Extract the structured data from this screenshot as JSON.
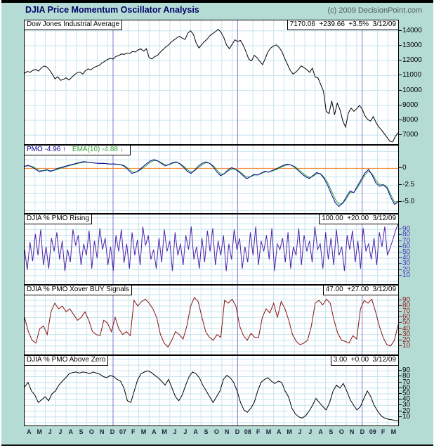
{
  "header": {
    "title": "DJIA Price Momentum Oscillator Analysis",
    "copyright": "(c) 2009 DecisionPoint.com"
  },
  "colors": {
    "background": "#b5dcd4",
    "panel_bg": "#ffffff",
    "grid": "#c6e4ef",
    "year_grid": "#7f76c8",
    "zero_line": "#ef8222",
    "title": "#000066",
    "copyright": "#50585c",
    "month_label": "#222244",
    "pmo_line": "#000099",
    "ema_line": "#2f9e35",
    "rising_line": "#4b22aa",
    "xover_line": "#8b1111",
    "above_line": "#000000",
    "price_line": "#000000"
  },
  "x_axis": {
    "labels": [
      "A",
      "M",
      "J",
      "J",
      "A",
      "S",
      "O",
      "N",
      "D",
      "07",
      "F",
      "M",
      "A",
      "M",
      "J",
      "J",
      "A",
      "S",
      "O",
      "N",
      "D",
      "08",
      "F",
      "M",
      "A",
      "M",
      "J",
      "J",
      "A",
      "S",
      "O",
      "N",
      "D",
      "09",
      "F",
      "M"
    ],
    "year_indices": [
      9,
      21,
      33
    ]
  },
  "chart_data": [
    {
      "type": "line",
      "title": "Dow Jones Industrial Average",
      "info": "7170.06  +239.66  +3.5%  3/12/09",
      "y_range": [
        6400,
        14700
      ],
      "grid_step": 1000,
      "zero_line": false,
      "tick_color": "#000000",
      "y_ticks": [
        {
          "v": 14000,
          "t": "14000"
        },
        {
          "v": 13000,
          "t": "13000"
        },
        {
          "v": 12000,
          "t": "12000"
        },
        {
          "v": 11000,
          "t": "11000"
        },
        {
          "v": 10000,
          "t": "10000"
        },
        {
          "v": 9000,
          "t": "9000"
        },
        {
          "v": 8000,
          "t": "8000"
        },
        {
          "v": 7000,
          "t": "7000"
        }
      ],
      "series": [
        {
          "name": "DJIA",
          "color": "#000000",
          "values": [
            11150,
            11280,
            11220,
            11350,
            11420,
            11300,
            11500,
            11640,
            11580,
            11380,
            11100,
            10780,
            10920,
            10680,
            10740,
            10850,
            10700,
            10880,
            11050,
            11190,
            11240,
            11100,
            11330,
            11450,
            11390,
            11540,
            11620,
            11680,
            11850,
            11960,
            12080,
            12160,
            12100,
            12280,
            12340,
            12450,
            12420,
            12510,
            12480,
            12620,
            12580,
            12720,
            12790,
            12640,
            12800,
            12210,
            12110,
            12270,
            12350,
            12560,
            12740,
            12920,
            13050,
            13250,
            13390,
            13520,
            13640,
            13500,
            13420,
            13850,
            14000,
            13760,
            13200,
            12850,
            13080,
            13280,
            13450,
            13680,
            13820,
            13950,
            14100,
            13900,
            13550,
            13050,
            12800,
            13100,
            13400,
            13280,
            13360,
            13040,
            12600,
            12100,
            11980,
            12350,
            12200,
            11950,
            11740,
            12150,
            12620,
            12850,
            12990,
            13060,
            12880,
            12600,
            12150,
            11750,
            11350,
            11100,
            11230,
            11420,
            11650,
            11530,
            11390,
            11220,
            11500,
            10900,
            10850,
            10400,
            9950,
            8600,
            8450,
            9300,
            8380,
            9150,
            8700,
            7950,
            7550,
            8500,
            8820,
            8600,
            8770,
            9000,
            8750,
            8300,
            8050,
            7950,
            8250,
            7850,
            7550,
            7350,
            7100,
            6850,
            6600,
            6550,
            6930,
            7170
          ]
        }
      ]
    },
    {
      "type": "line",
      "title": "",
      "info": "",
      "legend": [
        {
          "label": "PMO",
          "value": "-4.96",
          "arrow": "↑",
          "color": "#000099"
        },
        {
          "label": "EMA(10)",
          "value": "-4.88",
          "arrow": "↓",
          "color": "#2f9e35"
        }
      ],
      "y_range": [
        -6.63,
        3.37
      ],
      "grid_step": 1.25,
      "zero_line": true,
      "tick_color": "#000000",
      "y_ticks": [
        {
          "v": 0,
          "t": "0"
        },
        {
          "v": -2.5,
          "t": "-2.5"
        },
        {
          "v": -5,
          "t": "-5.0"
        }
      ],
      "series": [
        {
          "name": "EMA(10)",
          "color": "#2f9e35",
          "values": [
            0.3,
            0.38,
            0.3,
            0.02,
            -0.3,
            -0.38,
            -0.28,
            -0.35,
            -0.3,
            -0.12,
            0.05,
            0.22,
            0.38,
            0.52,
            0.66,
            0.8,
            0.9,
            0.9,
            0.85,
            0.8,
            0.74,
            0.74,
            0.71,
            0.65,
            0.65,
            0.61,
            0.56,
            0.4,
            -0.02,
            -0.5,
            -0.58,
            -0.35,
            0.05,
            0.45,
            0.9,
            1.15,
            1.1,
            0.85,
            0.5,
            0.52,
            0.75,
            0.88,
            0.72,
            0.32,
            -0.2,
            -0.55,
            -0.35,
            0.12,
            0.55,
            0.83,
            0.76,
            0.4,
            -0.25,
            -0.85,
            -0.8,
            -0.4,
            -0.1,
            -0.12,
            -0.4,
            -0.85,
            -1.3,
            -1.25,
            -1.0,
            -0.97,
            -0.78,
            -0.52,
            -0.56,
            -0.38,
            -0.18,
            0.07,
            0.32,
            0.52,
            0.5,
            0.28,
            -0.15,
            -0.6,
            -1.05,
            -1.35,
            -1.15,
            -0.78,
            -0.8,
            -1.3,
            -2.2,
            -3.4,
            -4.6,
            -5.3,
            -5.2,
            -4.5,
            -3.6,
            -3.55,
            -2.85,
            -1.95,
            -1.0,
            -0.4,
            -0.85,
            -1.8,
            -2.4,
            -2.4,
            -2.75,
            -3.9,
            -5.0,
            -4.88
          ]
        },
        {
          "name": "PMO",
          "color": "#000099",
          "values": [
            0.3,
            0.45,
            0.2,
            -0.15,
            -0.5,
            -0.35,
            -0.2,
            -0.45,
            -0.25,
            0.0,
            0.15,
            0.3,
            0.45,
            0.6,
            0.75,
            0.9,
            1.0,
            0.92,
            0.85,
            0.78,
            0.72,
            0.75,
            0.7,
            0.62,
            0.66,
            0.6,
            0.55,
            0.3,
            -0.2,
            -0.75,
            -0.6,
            -0.25,
            0.25,
            0.7,
            1.1,
            1.3,
            1.1,
            0.7,
            0.35,
            0.55,
            0.85,
            0.95,
            0.65,
            0.15,
            -0.45,
            -0.75,
            -0.25,
            0.35,
            0.75,
            0.95,
            0.75,
            0.25,
            -0.55,
            -1.1,
            -0.8,
            -0.2,
            0.1,
            -0.15,
            -0.55,
            -1.05,
            -1.55,
            -1.25,
            -0.9,
            -0.98,
            -0.7,
            -0.42,
            -0.58,
            -0.3,
            -0.1,
            0.2,
            0.45,
            0.62,
            0.5,
            0.18,
            -0.35,
            -0.85,
            -1.25,
            -1.5,
            -1.05,
            -0.62,
            -0.85,
            -1.55,
            -2.6,
            -3.9,
            -5.1,
            -5.65,
            -5.15,
            -4.2,
            -3.35,
            -3.6,
            -2.6,
            -1.65,
            -0.7,
            -0.15,
            -1.05,
            -2.2,
            -2.65,
            -2.45,
            -2.95,
            -4.3,
            -5.35,
            -4.96
          ]
        }
      ]
    },
    {
      "type": "line",
      "title": "DJIA % PMO Rising",
      "info": "100.00  +20.00  3/12/09",
      "y_range": [
        -5,
        116
      ],
      "grid_step": 10,
      "zero_line": false,
      "tick_color": "#4733b8",
      "y_ticks": [
        {
          "v": 90,
          "t": "90"
        },
        {
          "v": 80,
          "t": "80"
        },
        {
          "v": 70,
          "t": "70"
        },
        {
          "v": 60,
          "t": "60"
        },
        {
          "v": 50,
          "t": "50"
        },
        {
          "v": 40,
          "t": "40"
        },
        {
          "v": 30,
          "t": "30"
        },
        {
          "v": 20,
          "t": "20"
        },
        {
          "v": 10,
          "t": "10"
        }
      ],
      "series": [
        {
          "name": "% PMO Rising",
          "color": "#4b22aa",
          "values": [
            55,
            20,
            68,
            35,
            82,
            45,
            90,
            28,
            60,
            22,
            75,
            52,
            85,
            38,
            70,
            18,
            55,
            33,
            90,
            62,
            80,
            28,
            65,
            45,
            88,
            22,
            70,
            40,
            92,
            55,
            75,
            28,
            60,
            18,
            80,
            52,
            90,
            32,
            65,
            22,
            85,
            45,
            72,
            28,
            95,
            62,
            80,
            38,
            55,
            22,
            75,
            33,
            90,
            52,
            70,
            18,
            85,
            45,
            65,
            28,
            80,
            55,
            95,
            38,
            60,
            22,
            75,
            33,
            88,
            52,
            92,
            28,
            70,
            45,
            80,
            18,
            65,
            38,
            90,
            55,
            75,
            22,
            60,
            33,
            85,
            45,
            95,
            28,
            70,
            52,
            80,
            38,
            92,
            18,
            65,
            55,
            75,
            33,
            85,
            22,
            60,
            45,
            92,
            28,
            80,
            52,
            70,
            33,
            95,
            55,
            65,
            22,
            85,
            38,
            75,
            28,
            90,
            45,
            60,
            18,
            80,
            55,
            88,
            33,
            70,
            22,
            92,
            52,
            65,
            38,
            75,
            28,
            85,
            60,
            95,
            45,
            58,
            72,
            88,
            100
          ]
        }
      ]
    },
    {
      "type": "line",
      "title": "DJIA % PMO Xover BUY Signals",
      "info": "47.00  +27.00  3/12/09",
      "y_range": [
        -5,
        116
      ],
      "grid_step": 10,
      "zero_line": false,
      "tick_color": "#8b1515",
      "y_ticks": [
        {
          "v": 90,
          "t": "90"
        },
        {
          "v": 80,
          "t": "80"
        },
        {
          "v": 70,
          "t": "70"
        },
        {
          "v": 60,
          "t": "60"
        },
        {
          "v": 50,
          "t": "50"
        },
        {
          "v": 40,
          "t": "40"
        },
        {
          "v": 30,
          "t": "30"
        },
        {
          "v": 20,
          "t": "20"
        },
        {
          "v": 10,
          "t": "10"
        }
      ],
      "series": [
        {
          "name": "% PMO Xover BUY",
          "color": "#8b1111",
          "values": [
            60,
            35,
            20,
            15,
            40,
            45,
            30,
            70,
            85,
            75,
            80,
            70,
            75,
            65,
            55,
            60,
            70,
            55,
            35,
            30,
            28,
            55,
            50,
            35,
            60,
            40,
            30,
            35,
            28,
            90,
            80,
            88,
            92,
            85,
            75,
            60,
            30,
            15,
            8,
            20,
            35,
            30,
            22,
            45,
            80,
            95,
            88,
            60,
            35,
            25,
            20,
            30,
            25,
            90,
            85,
            92,
            80,
            45,
            28,
            20,
            32,
            25,
            25,
            60,
            75,
            68,
            85,
            60,
            88,
            75,
            55,
            30,
            18,
            12,
            15,
            20,
            45,
            85,
            90,
            82,
            92,
            85,
            55,
            32,
            20,
            18,
            15,
            28,
            22,
            75,
            90,
            85,
            92,
            70,
            45,
            25,
            12,
            10,
            20,
            47
          ]
        }
      ]
    },
    {
      "type": "line",
      "title": "DJIA % PMO Above Zero",
      "info": "3.00  +0.00  3/12/09",
      "y_range": [
        -5,
        116
      ],
      "grid_step": 10,
      "zero_line": false,
      "tick_color": "#000000",
      "y_ticks": [
        {
          "v": 90,
          "t": "90"
        },
        {
          "v": 80,
          "t": "80"
        },
        {
          "v": 70,
          "t": "70"
        },
        {
          "v": 60,
          "t": "60"
        },
        {
          "v": 50,
          "t": "50"
        },
        {
          "v": 40,
          "t": "40"
        },
        {
          "v": 30,
          "t": "30"
        },
        {
          "v": 20,
          "t": "20"
        },
        {
          "v": 10,
          "t": "10"
        }
      ],
      "series": [
        {
          "name": "% PMO Above Zero",
          "color": "#000000",
          "values": [
            62,
            70,
            55,
            48,
            35,
            40,
            45,
            38,
            50,
            55,
            65,
            72,
            78,
            85,
            87,
            88,
            86,
            88,
            87,
            85,
            88,
            86,
            84,
            80,
            78,
            82,
            80,
            75,
            72,
            60,
            38,
            35,
            55,
            75,
            85,
            88,
            90,
            87,
            82,
            78,
            72,
            65,
            75,
            60,
            45,
            38,
            48,
            65,
            80,
            88,
            85,
            78,
            65,
            55,
            45,
            35,
            45,
            55,
            75,
            82,
            78,
            70,
            55,
            35,
            22,
            18,
            25,
            35,
            55,
            70,
            75,
            78,
            72,
            68,
            72,
            70,
            55,
            45,
            25,
            15,
            10,
            8,
            12,
            20,
            30,
            42,
            35,
            28,
            22,
            35,
            55,
            65,
            60,
            68,
            55,
            40,
            30,
            22,
            28,
            42,
            55,
            45,
            30,
            20,
            12,
            8,
            6,
            5,
            4,
            3
          ]
        }
      ]
    }
  ]
}
